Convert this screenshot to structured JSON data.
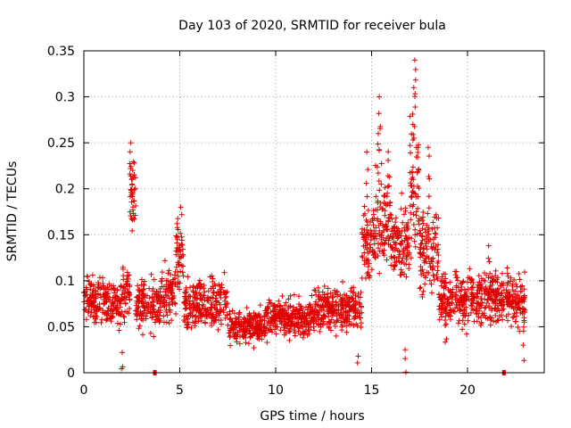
{
  "chart_data": {
    "type": "scatter",
    "title": "Day 103 of 2020, SRMTID for receiver bula",
    "xlabel": "GPS time / hours",
    "ylabel": "SRMTID / TECUs",
    "xlim": [
      0,
      24
    ],
    "ylim": [
      0,
      0.35
    ],
    "xticks": [
      0,
      5,
      10,
      15,
      20
    ],
    "xtick_labels": [
      "0",
      "5",
      "10",
      "15",
      "20"
    ],
    "yticks": [
      0,
      0.05,
      0.1,
      0.15,
      0.2,
      0.25,
      0.3,
      0.35
    ],
    "ytick_labels": [
      "0",
      "0.05",
      "0.1",
      "0.15",
      "0.2",
      "0.25",
      "0.3",
      "0.35"
    ],
    "grid": true,
    "marker": "+",
    "marker_color": "#e00000",
    "gap_markers": [
      3.7,
      21.9
    ],
    "series": [
      {
        "name": "SRMTID",
        "segments": [
          {
            "x_start": 0.0,
            "x_end": 0.5,
            "base": 0.08,
            "spread": 0.035
          },
          {
            "x_start": 0.5,
            "x_end": 2.0,
            "base": 0.075,
            "spread": 0.035
          },
          {
            "x_start": 2.0,
            "x_end": 2.4,
            "base": 0.09,
            "spread": 0.05
          },
          {
            "x_start": 2.4,
            "x_end": 2.7,
            "base": 0.19,
            "spread": 0.06
          },
          {
            "x_start": 2.7,
            "x_end": 4.0,
            "base": 0.075,
            "spread": 0.04
          },
          {
            "x_start": 4.0,
            "x_end": 4.8,
            "base": 0.085,
            "spread": 0.04
          },
          {
            "x_start": 4.8,
            "x_end": 5.2,
            "base": 0.13,
            "spread": 0.05
          },
          {
            "x_start": 5.2,
            "x_end": 7.5,
            "base": 0.075,
            "spread": 0.04
          },
          {
            "x_start": 7.5,
            "x_end": 9.5,
            "base": 0.05,
            "spread": 0.025
          },
          {
            "x_start": 9.5,
            "x_end": 12.0,
            "base": 0.06,
            "spread": 0.03
          },
          {
            "x_start": 12.0,
            "x_end": 14.5,
            "base": 0.07,
            "spread": 0.035
          },
          {
            "x_start": 14.5,
            "x_end": 15.2,
            "base": 0.14,
            "spread": 0.06
          },
          {
            "x_start": 15.2,
            "x_end": 16.0,
            "base": 0.17,
            "spread": 0.08
          },
          {
            "x_start": 16.0,
            "x_end": 17.0,
            "base": 0.14,
            "spread": 0.06
          },
          {
            "x_start": 17.0,
            "x_end": 17.5,
            "base": 0.2,
            "spread": 0.11
          },
          {
            "x_start": 17.5,
            "x_end": 18.5,
            "base": 0.13,
            "spread": 0.07
          },
          {
            "x_start": 18.5,
            "x_end": 23.0,
            "base": 0.08,
            "spread": 0.04
          }
        ],
        "peaks": [
          {
            "x": 2.45,
            "y": 0.25
          },
          {
            "x": 2.55,
            "y": 0.22
          },
          {
            "x": 5.05,
            "y": 0.18
          },
          {
            "x": 14.75,
            "y": 0.24
          },
          {
            "x": 15.4,
            "y": 0.3
          },
          {
            "x": 15.35,
            "y": 0.26
          },
          {
            "x": 17.25,
            "y": 0.34
          },
          {
            "x": 17.2,
            "y": 0.31
          },
          {
            "x": 17.15,
            "y": 0.27
          },
          {
            "x": 17.95,
            "y": 0.245
          },
          {
            "x": 2.0,
            "y": 0.022
          },
          {
            "x": 14.3,
            "y": 0.018
          },
          {
            "x": 16.75,
            "y": 0.025
          },
          {
            "x": 18.85,
            "y": 0.07
          },
          {
            "x": 21.1,
            "y": 0.138
          },
          {
            "x": 22.9,
            "y": 0.03
          }
        ]
      }
    ]
  }
}
